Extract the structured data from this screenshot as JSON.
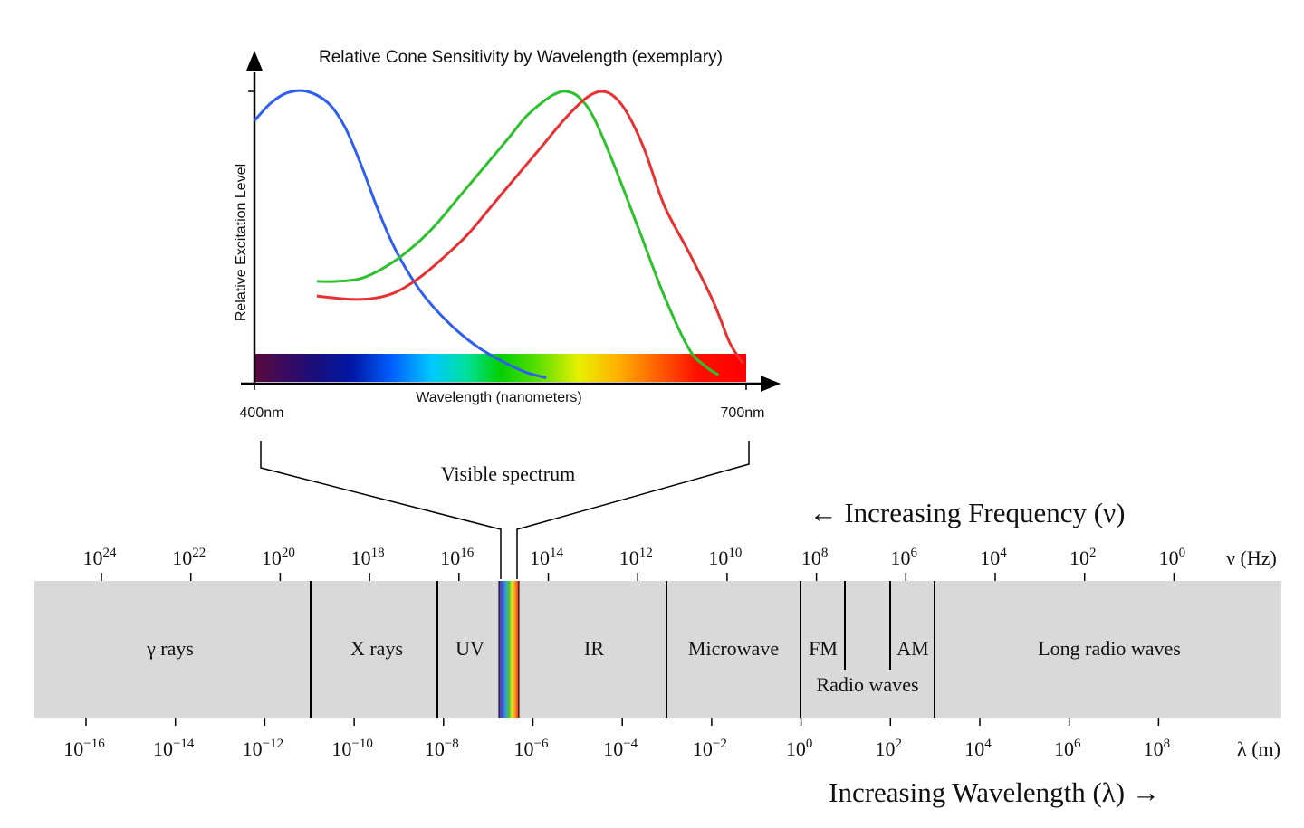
{
  "cone_chart": {
    "title": "Relative Cone Sensitivity by Wavelength (exemplary)",
    "ylabel": "Relative Excitation Level",
    "xlabel": "Wavelength (nanometers)",
    "x_start_label": "400nm",
    "x_end_label": "700nm",
    "visible_label": "Visible spectrum"
  },
  "chart_data": {
    "type": "line",
    "title": "Relative Cone Sensitivity by Wavelength (exemplary)",
    "xlabel": "Wavelength (nanometers)",
    "ylabel": "Relative Excitation Level",
    "xlim": [
      400,
      700
    ],
    "ylim": [
      0,
      1
    ],
    "grid": false,
    "series": [
      {
        "color": "#2f5ff0",
        "x": [
          400,
          410,
          420,
          432,
          445,
          455,
          465,
          475,
          485,
          495,
          505,
          520,
          535,
          550,
          565,
          578
        ],
        "y": [
          0.9,
          0.96,
          0.995,
          1.0,
          0.96,
          0.88,
          0.75,
          0.6,
          0.47,
          0.37,
          0.29,
          0.2,
          0.13,
          0.08,
          0.04,
          0.02
        ]
      },
      {
        "color": "#2dc22d",
        "x": [
          438,
          450,
          465,
          480,
          495,
          510,
          525,
          540,
          555,
          565,
          575,
          583,
          590,
          598,
          607,
          620,
          635,
          650,
          665,
          675,
          683
        ],
        "y": [
          0.35,
          0.35,
          0.36,
          0.4,
          0.46,
          0.54,
          0.64,
          0.74,
          0.84,
          0.91,
          0.96,
          0.99,
          1.0,
          0.98,
          0.91,
          0.74,
          0.52,
          0.3,
          0.12,
          0.06,
          0.03
        ]
      },
      {
        "color": "#e83030",
        "x": [
          438,
          455,
          470,
          485,
          500,
          515,
          530,
          545,
          560,
          575,
          590,
          603,
          612,
          620,
          628,
          638,
          650,
          665,
          680,
          690,
          698
        ],
        "y": [
          0.3,
          0.29,
          0.29,
          0.31,
          0.36,
          0.43,
          0.51,
          0.61,
          0.71,
          0.81,
          0.91,
          0.98,
          1.0,
          0.98,
          0.92,
          0.8,
          0.61,
          0.45,
          0.28,
          0.14,
          0.07
        ]
      }
    ]
  },
  "spectrum": {
    "freq_title": "← Increasing Frequency (ν)",
    "wave_title": "Increasing Wavelength (λ) →",
    "freq_unit": "ν (Hz)",
    "wave_unit": "λ (m)",
    "freq_ticks": [
      {
        "base": "10",
        "exp": "24"
      },
      {
        "base": "10",
        "exp": "22"
      },
      {
        "base": "10",
        "exp": "20"
      },
      {
        "base": "10",
        "exp": "18"
      },
      {
        "base": "10",
        "exp": "16"
      },
      {
        "base": "10",
        "exp": "14"
      },
      {
        "base": "10",
        "exp": "12"
      },
      {
        "base": "10",
        "exp": "10"
      },
      {
        "base": "10",
        "exp": "8"
      },
      {
        "base": "10",
        "exp": "6"
      },
      {
        "base": "10",
        "exp": "4"
      },
      {
        "base": "10",
        "exp": "2"
      },
      {
        "base": "10",
        "exp": "0"
      }
    ],
    "wave_ticks": [
      {
        "base": "10",
        "exp": "−16"
      },
      {
        "base": "10",
        "exp": "−14"
      },
      {
        "base": "10",
        "exp": "−12"
      },
      {
        "base": "10",
        "exp": "−10"
      },
      {
        "base": "10",
        "exp": "−8"
      },
      {
        "base": "10",
        "exp": "−6"
      },
      {
        "base": "10",
        "exp": "−4"
      },
      {
        "base": "10",
        "exp": "−2"
      },
      {
        "base": "10",
        "exp": "0"
      },
      {
        "base": "10",
        "exp": "2"
      },
      {
        "base": "10",
        "exp": "4"
      },
      {
        "base": "10",
        "exp": "6"
      },
      {
        "base": "10",
        "exp": "8"
      }
    ],
    "regions": {
      "gamma": "γ rays",
      "xray": "X rays",
      "uv": "UV",
      "ir": "IR",
      "microwave": "Microwave",
      "fm": "FM",
      "am": "AM",
      "radio": "Radio waves",
      "long_radio": "Long radio waves"
    },
    "band_color": "#d9d9d9"
  }
}
